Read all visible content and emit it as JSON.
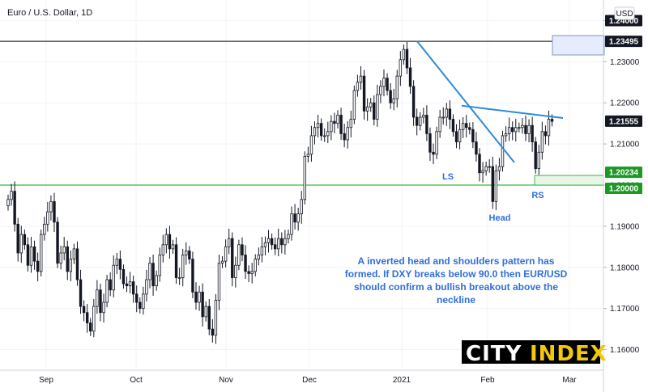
{
  "chart_data": {
    "type": "candlestick",
    "title": "Euro / U.S. Dollar, 1D",
    "currency": "USD",
    "ylim": [
      1.155,
      1.245
    ],
    "y_ticks": [
      1.16,
      1.17,
      1.18,
      1.19,
      1.2,
      1.21,
      1.22,
      1.23,
      1.24
    ],
    "y_tick_labels": [
      "1.16000",
      "1.17000",
      "1.18000",
      "1.19000",
      "1.20000",
      "1.21000",
      "1.22000",
      "1.23000",
      "1.24000"
    ],
    "x_labels": [
      "Sep",
      "Oct",
      "Nov",
      "Dec",
      "2021",
      "Feb",
      "Mar"
    ],
    "price_badges": [
      {
        "value": 1.24,
        "label": "1.24000",
        "color": "#131722"
      },
      {
        "value": 1.23495,
        "label": "1.23495",
        "color": "#131722"
      },
      {
        "value": 1.21555,
        "label": "1.21555",
        "color": "#131722"
      },
      {
        "value": 1.20234,
        "label": "1.20234",
        "color": "#1a9a22"
      },
      {
        "value": 1.2,
        "label": "1.20000",
        "color": "#1a9a22"
      }
    ],
    "levels": [
      {
        "value": 1.23495,
        "color": "#333333"
      },
      {
        "value": 1.2,
        "color": "#3cb83c"
      }
    ],
    "candles": [
      1.1965,
      1.1985,
      1.1905,
      1.1835,
      1.188,
      1.1855,
      1.1805,
      1.185,
      1.1815,
      1.179,
      1.188,
      1.1905,
      1.1935,
      1.196,
      1.191,
      1.181,
      1.1835,
      1.185,
      1.179,
      1.182,
      1.1845,
      1.177,
      1.1705,
      1.169,
      1.1665,
      1.1645,
      1.1705,
      1.1745,
      1.169,
      1.1715,
      1.177,
      1.1745,
      1.1805,
      1.182,
      1.1795,
      1.176,
      1.1755,
      1.1765,
      1.1735,
      1.1715,
      1.17,
      1.1735,
      1.177,
      1.181,
      1.1755,
      1.178,
      1.183,
      1.1855,
      1.188,
      1.1845,
      1.1855,
      1.1775,
      1.1775,
      1.183,
      1.184,
      1.182,
      1.174,
      1.1715,
      1.174,
      1.168,
      1.1705,
      1.165,
      1.1635,
      1.172,
      1.181,
      1.1815,
      1.185,
      1.187,
      1.1775,
      1.1805,
      1.1855,
      1.183,
      1.179,
      1.1785,
      1.179,
      1.182,
      1.183,
      1.185,
      1.186,
      1.187,
      1.1855,
      1.1845,
      1.187,
      1.1855,
      1.187,
      1.188,
      1.193,
      1.191,
      1.193,
      1.1965,
      1.207,
      1.2075,
      1.212,
      1.214,
      1.215,
      1.212,
      1.212,
      1.213,
      1.2155,
      1.215,
      1.217,
      1.2125,
      1.211,
      1.214,
      1.216,
      1.223,
      1.225,
      1.2265,
      1.218,
      1.219,
      1.22,
      1.216,
      1.222,
      1.224,
      1.226,
      1.223,
      1.22,
      1.221,
      1.2265,
      1.2305,
      1.233,
      1.2285,
      1.224,
      1.2165,
      1.2145,
      1.2165,
      1.217,
      1.2125,
      1.208,
      1.2075,
      1.213,
      1.2165,
      1.2165,
      1.2185,
      1.216,
      1.213,
      1.2105,
      1.2135,
      1.215,
      1.214,
      1.2135,
      1.2105,
      1.2075,
      1.203,
      1.2035,
      1.2045,
      1.2045,
      1.196,
      1.2035,
      1.2045,
      1.212,
      1.2125,
      1.214,
      1.213,
      1.214,
      1.214,
      1.2145,
      1.2125,
      1.2145,
      1.2105,
      1.204,
      1.208,
      1.213,
      1.212,
      1.216,
      1.2155
    ],
    "annotations": [
      {
        "text": "LS",
        "value": 1.2045
      },
      {
        "text": "Head",
        "value": 1.1945
      },
      {
        "text": "RS",
        "value": 1.2
      }
    ],
    "note": [
      "A inverted head and shoulders pattern has",
      "formed. If DXY breaks below 90.0 then EUR/USD",
      "should confirm a bullish breakout above the",
      "neckline"
    ]
  },
  "logo": {
    "part1": "CITY",
    "part2": "INDEX"
  },
  "colors": {
    "up": "#ffffff",
    "down": "#131722",
    "neckline": "#2f8ad8",
    "text": "#2f6fdb"
  }
}
